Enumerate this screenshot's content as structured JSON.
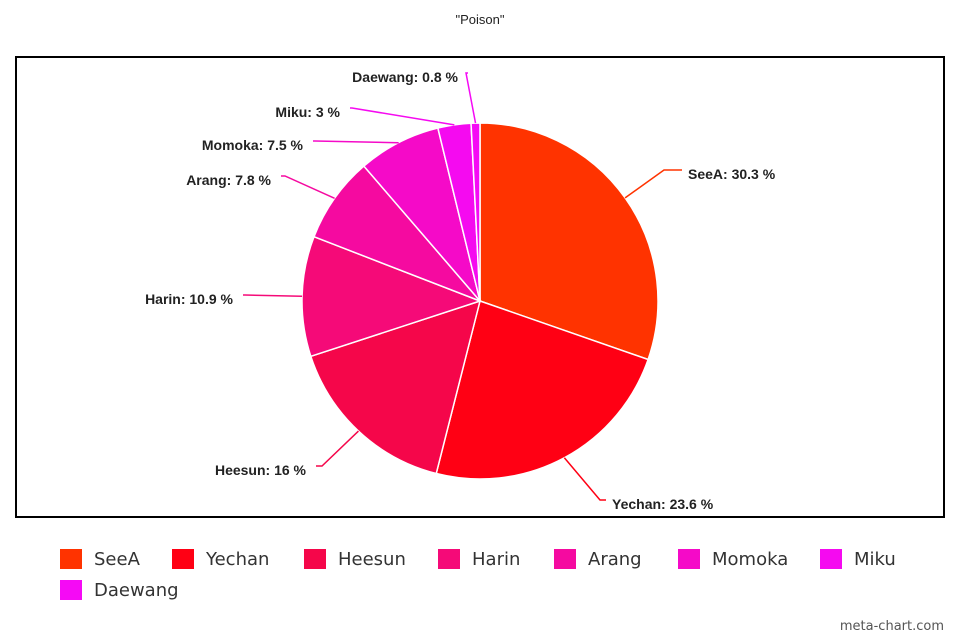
{
  "chart_data": {
    "type": "pie",
    "title": "\"Poison\"",
    "labels": [
      "SeeA",
      "Yechan",
      "Heesun",
      "Harin",
      "Arang",
      "Momoka",
      "Miku",
      "Daewang"
    ],
    "values": [
      30.3,
      23.6,
      16,
      10.9,
      7.8,
      7.5,
      3,
      0.8
    ],
    "slice_labels": [
      "SeeA: 30.3 %",
      "Yechan: 23.6 %",
      "Heesun: 16 %",
      "Harin: 10.9 %",
      "Arang: 7.8 %",
      "Momoka: 7.5 %",
      "Miku: 3 %",
      "Daewang: 0.8 %"
    ],
    "colors": [
      "#ff3300",
      "#ff0014",
      "#f5064a",
      "#f50a78",
      "#f50aa0",
      "#f50ac8",
      "#f50af0",
      "#f50af5"
    ],
    "legend_position": "bottom",
    "start": "top, clockwise"
  },
  "watermark": "meta-chart.com"
}
